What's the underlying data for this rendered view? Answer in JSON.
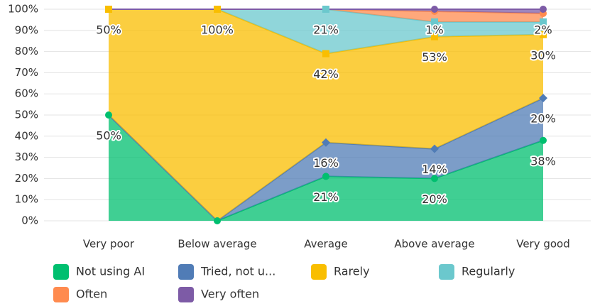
{
  "chart_data": {
    "type": "stacked_area",
    "categories": [
      "Very poor",
      "Below average",
      "Average",
      "Above average",
      "Very good"
    ],
    "series": [
      {
        "name": "Not using AI",
        "color": "#00bf6f",
        "values": [
          50,
          0,
          21,
          20,
          38
        ],
        "value_labels": [
          "50%",
          null,
          "21%",
          "20%",
          "38%"
        ]
      },
      {
        "name": "Tried, not u...",
        "color": "#507cb6",
        "values": [
          0,
          0,
          16,
          14,
          20
        ],
        "value_labels": [
          null,
          null,
          "16%",
          "14%",
          "20%"
        ]
      },
      {
        "name": "Rarely",
        "color": "#f9be00",
        "values": [
          50,
          100,
          42,
          53,
          30
        ],
        "value_labels": [
          "50%",
          "100%",
          "42%",
          "53%",
          "30%"
        ]
      },
      {
        "name": "Regularly",
        "color": "#6bc8cd",
        "values": [
          0,
          0,
          21,
          7,
          6
        ],
        "value_labels": [
          null,
          null,
          "21%",
          null,
          null
        ]
      },
      {
        "name": "Often",
        "color": "#ff8b4f",
        "values": [
          0,
          0,
          0,
          5,
          4
        ],
        "value_labels": [
          null,
          null,
          null,
          null,
          null
        ]
      },
      {
        "name": "Very often",
        "color": "#7d5ba6",
        "values": [
          0,
          0,
          0,
          1,
          2
        ],
        "value_labels": [
          null,
          null,
          null,
          "1%",
          "2%"
        ]
      }
    ],
    "ylim": [
      0,
      100
    ],
    "yticks": [
      {
        "value": 0,
        "label": "0%"
      },
      {
        "value": 10,
        "label": "10%"
      },
      {
        "value": 20,
        "label": "20%"
      },
      {
        "value": 30,
        "label": "30%"
      },
      {
        "value": 40,
        "label": "40%"
      },
      {
        "value": 50,
        "label": "50%"
      },
      {
        "value": 60,
        "label": "60%"
      },
      {
        "value": 70,
        "label": "70%"
      },
      {
        "value": 80,
        "label": "80%"
      },
      {
        "value": 90,
        "label": "90%"
      },
      {
        "value": 100,
        "label": "100%"
      }
    ],
    "grid": true
  }
}
